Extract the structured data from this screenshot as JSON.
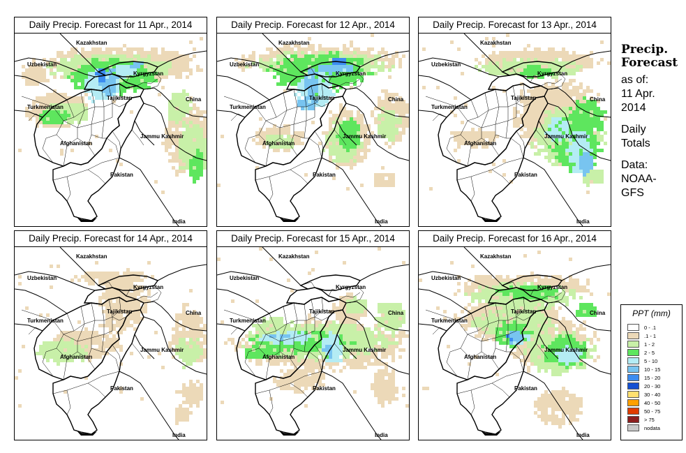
{
  "panels": [
    {
      "title": "Daily Precip. Forecast for  11 Apr., 2014"
    },
    {
      "title": "Daily Precip. Forecast for  12 Apr., 2014"
    },
    {
      "title": "Daily Precip. Forecast for  13 Apr., 2014"
    },
    {
      "title": "Daily Precip. Forecast for  14 Apr., 2014"
    },
    {
      "title": "Daily Precip. Forecast for  15 Apr., 2014"
    },
    {
      "title": "Daily Precip. Forecast for  16 Apr., 2014"
    }
  ],
  "map_labels": {
    "kazakhstan": "Kazakhstan",
    "uzbekistan": "Uzbekistan",
    "kyrgyzstan": "Kyrgyzstan",
    "tajikistan": "Tajikistan",
    "turkmenistan": "Turkmenistan",
    "china": "China",
    "afghanistan": "Afghanistan",
    "jammu_kashmir": "Jammu Kashmir",
    "pakistan": "Pakistan",
    "india": "India"
  },
  "info": {
    "heading_line1": "Precip.",
    "heading_line2": "Forecast",
    "as_of": "as of:",
    "date_line1": "11 Apr.",
    "date_line2": "2014",
    "daily_line1": "Daily",
    "daily_line2": "Totals",
    "data_line1": "Data:",
    "data_line2": "NOAA-",
    "data_line3": "GFS"
  },
  "legend": {
    "title": "PPT (mm)",
    "items": [
      {
        "label": "0 - .1",
        "color": "#ffffff"
      },
      {
        "label": ".1 - 1",
        "color": "#ecd9b8"
      },
      {
        "label": "1 - 2",
        "color": "#c8f0a8"
      },
      {
        "label": "2 - 5",
        "color": "#5ee65e"
      },
      {
        "label": "5 - 10",
        "color": "#b4ecf4"
      },
      {
        "label": "10 - 15",
        "color": "#78c4f0"
      },
      {
        "label": "15 - 20",
        "color": "#3c8cf0"
      },
      {
        "label": "20 - 30",
        "color": "#1450d2"
      },
      {
        "label": "30 - 40",
        "color": "#ffe070"
      },
      {
        "label": "40 - 50",
        "color": "#ffa000"
      },
      {
        "label": "50 - 75",
        "color": "#e03c00"
      },
      {
        "label": "> 75",
        "color": "#8c1e1e"
      },
      {
        "label": "nodata",
        "color": "#c8c8c8"
      }
    ]
  }
}
